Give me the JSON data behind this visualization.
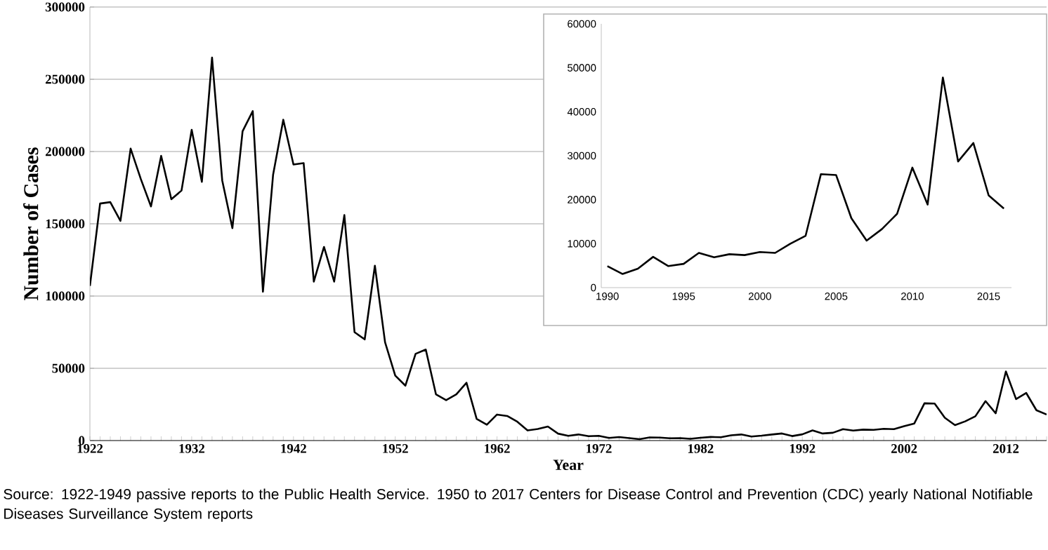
{
  "chart_data": [
    {
      "type": "line",
      "xlabel": "Year",
      "ylabel": "Number of Cases",
      "grid": "y",
      "marker": "none",
      "line_style": "solid",
      "xlim": [
        1922,
        2016
      ],
      "ylim": [
        0,
        300000
      ],
      "yticks": [
        0,
        50000,
        100000,
        150000,
        200000,
        250000,
        300000
      ],
      "xticks": [
        1922,
        {
          "value": 1923,
          "label": null
        },
        {
          "value": 1924,
          "label": null
        },
        {
          "value": 1925,
          "label": null
        },
        {
          "value": 1926,
          "label": null
        },
        {
          "value": 1927,
          "label": null
        },
        {
          "value": 1928,
          "label": null
        },
        {
          "value": 1929,
          "label": null
        },
        {
          "value": 1930,
          "label": null
        },
        {
          "value": 1931,
          "label": null
        },
        1932,
        {
          "value": 1933,
          "label": null
        },
        {
          "value": 1934,
          "label": null
        },
        {
          "value": 1935,
          "label": null
        },
        {
          "value": 1936,
          "label": null
        },
        {
          "value": 1937,
          "label": null
        },
        {
          "value": 1938,
          "label": null
        },
        {
          "value": 1939,
          "label": null
        },
        {
          "value": 1940,
          "label": null
        },
        {
          "value": 1941,
          "label": null
        },
        1942,
        {
          "value": 1943,
          "label": null
        },
        {
          "value": 1944,
          "label": null
        },
        {
          "value": 1945,
          "label": null
        },
        {
          "value": 1946,
          "label": null
        },
        {
          "value": 1947,
          "label": null
        },
        {
          "value": 1948,
          "label": null
        },
        {
          "value": 1949,
          "label": null
        },
        {
          "value": 1950,
          "label": null
        },
        {
          "value": 1951,
          "label": null
        },
        1952,
        {
          "value": 1953,
          "label": null
        },
        {
          "value": 1954,
          "label": null
        },
        {
          "value": 1955,
          "label": null
        },
        {
          "value": 1956,
          "label": null
        },
        {
          "value": 1957,
          "label": null
        },
        {
          "value": 1958,
          "label": null
        },
        {
          "value": 1959,
          "label": null
        },
        {
          "value": 1960,
          "label": null
        },
        {
          "value": 1961,
          "label": null
        },
        1962,
        {
          "value": 1963,
          "label": null
        },
        {
          "value": 1964,
          "label": null
        },
        {
          "value": 1965,
          "label": null
        },
        {
          "value": 1966,
          "label": null
        },
        {
          "value": 1967,
          "label": null
        },
        {
          "value": 1968,
          "label": null
        },
        {
          "value": 1969,
          "label": null
        },
        {
          "value": 1970,
          "label": null
        },
        {
          "value": 1971,
          "label": null
        },
        1972,
        {
          "value": 1973,
          "label": null
        },
        {
          "value": 1974,
          "label": null
        },
        {
          "value": 1975,
          "label": null
        },
        {
          "value": 1976,
          "label": null
        },
        {
          "value": 1977,
          "label": null
        },
        {
          "value": 1978,
          "label": null
        },
        {
          "value": 1979,
          "label": null
        },
        {
          "value": 1980,
          "label": null
        },
        {
          "value": 1981,
          "label": null
        },
        1982,
        {
          "value": 1983,
          "label": null
        },
        {
          "value": 1984,
          "label": null
        },
        {
          "value": 1985,
          "label": null
        },
        {
          "value": 1986,
          "label": null
        },
        {
          "value": 1987,
          "label": null
        },
        {
          "value": 1988,
          "label": null
        },
        {
          "value": 1989,
          "label": null
        },
        {
          "value": 1990,
          "label": null
        },
        {
          "value": 1991,
          "label": null
        },
        1992,
        {
          "value": 1993,
          "label": null
        },
        {
          "value": 1994,
          "label": null
        },
        {
          "value": 1995,
          "label": null
        },
        {
          "value": 1996,
          "label": null
        },
        {
          "value": 1997,
          "label": null
        },
        {
          "value": 1998,
          "label": null
        },
        {
          "value": 1999,
          "label": null
        },
        {
          "value": 2000,
          "label": null
        },
        {
          "value": 2001,
          "label": null
        },
        2002,
        {
          "value": 2003,
          "label": null
        },
        {
          "value": 2004,
          "label": null
        },
        {
          "value": 2005,
          "label": null
        },
        {
          "value": 2006,
          "label": null
        },
        {
          "value": 2007,
          "label": null
        },
        {
          "value": 2008,
          "label": null
        },
        {
          "value": 2009,
          "label": null
        },
        {
          "value": 2010,
          "label": null
        },
        {
          "value": 2011,
          "label": null
        },
        2012,
        {
          "value": 2013,
          "label": null
        },
        {
          "value": 2014,
          "label": null
        },
        {
          "value": 2015,
          "label": null
        },
        {
          "value": 2016,
          "label": null
        }
      ],
      "annotations": [
        "Source: 1922-1949 passive reports to the Public Health Service. 1950 to 2017 Centers for Disease Control and Prevention (CDC) yearly National Notifiable Diseases Surveillance System reports"
      ],
      "series": [
        {
          "color": "#000000",
          "x": [
            1922,
            1923,
            1924,
            1925,
            1926,
            1927,
            1928,
            1929,
            1930,
            1931,
            1932,
            1933,
            1934,
            1935,
            1936,
            1937,
            1938,
            1939,
            1940,
            1941,
            1942,
            1943,
            1944,
            1945,
            1946,
            1947,
            1948,
            1949,
            1950,
            1951,
            1952,
            1953,
            1954,
            1955,
            1956,
            1957,
            1958,
            1959,
            1960,
            1961,
            1962,
            1963,
            1964,
            1965,
            1966,
            1967,
            1968,
            1969,
            1970,
            1971,
            1972,
            1973,
            1974,
            1975,
            1976,
            1977,
            1978,
            1979,
            1980,
            1981,
            1982,
            1983,
            1984,
            1985,
            1986,
            1987,
            1988,
            1989,
            1990,
            1991,
            1992,
            1993,
            1994,
            1995,
            1996,
            1997,
            1998,
            1999,
            2000,
            2001,
            2002,
            2003,
            2004,
            2005,
            2006,
            2007,
            2008,
            2009,
            2010,
            2011,
            2012,
            2013,
            2014,
            2015,
            2016
          ],
          "values": [
            107000,
            164000,
            165000,
            152000,
            202000,
            181000,
            162000,
            197000,
            167000,
            173000,
            215000,
            179000,
            265000,
            180000,
            147000,
            214000,
            228000,
            103000,
            184000,
            222000,
            191000,
            192000,
            110000,
            134000,
            110000,
            156000,
            75000,
            70000,
            121000,
            68000,
            45000,
            38000,
            60000,
            63000,
            32000,
            28000,
            32000,
            40000,
            15000,
            11000,
            18000,
            17000,
            13000,
            7000,
            8000,
            9700,
            4800,
            3300,
            4200,
            3000,
            3300,
            1800,
            2400,
            1700,
            1000,
            2200,
            2100,
            1600,
            1700,
            1200,
            1900,
            2500,
            2300,
            3600,
            4200,
            2800,
            3400,
            4200,
            4900,
            3100,
            4300,
            7000,
            4900,
            5400,
            7900,
            6900,
            7600,
            7400,
            8100,
            7900,
            10000,
            11800,
            25800,
            25600,
            15800,
            10700,
            13300,
            16800,
            27300,
            18900,
            47800,
            28700,
            32900,
            21000,
            18000
          ]
        }
      ]
    },
    {
      "type": "line",
      "grid": false,
      "marker": "none",
      "line_style": "solid",
      "xlim": [
        1989.6,
        2016.5
      ],
      "ylim": [
        0,
        60000
      ],
      "xticks": [
        1990,
        1995,
        2000,
        2005,
        2010,
        2015
      ],
      "yticks": [
        0,
        10000,
        20000,
        30000,
        40000,
        50000,
        60000
      ],
      "series": [
        {
          "color": "#000000",
          "x": [
            1990,
            1991,
            1992,
            1993,
            1994,
            1995,
            1996,
            1997,
            1998,
            1999,
            2000,
            2001,
            2002,
            2003,
            2004,
            2005,
            2006,
            2007,
            2008,
            2009,
            2010,
            2011,
            2012,
            2013,
            2014,
            2015,
            2016
          ],
          "values": [
            4900,
            3100,
            4300,
            7000,
            4900,
            5400,
            7900,
            6900,
            7600,
            7400,
            8100,
            7900,
            10000,
            11800,
            25800,
            25600,
            15800,
            10700,
            13300,
            16800,
            27300,
            18900,
            47800,
            28700,
            32900,
            21000,
            18000
          ]
        }
      ]
    }
  ]
}
